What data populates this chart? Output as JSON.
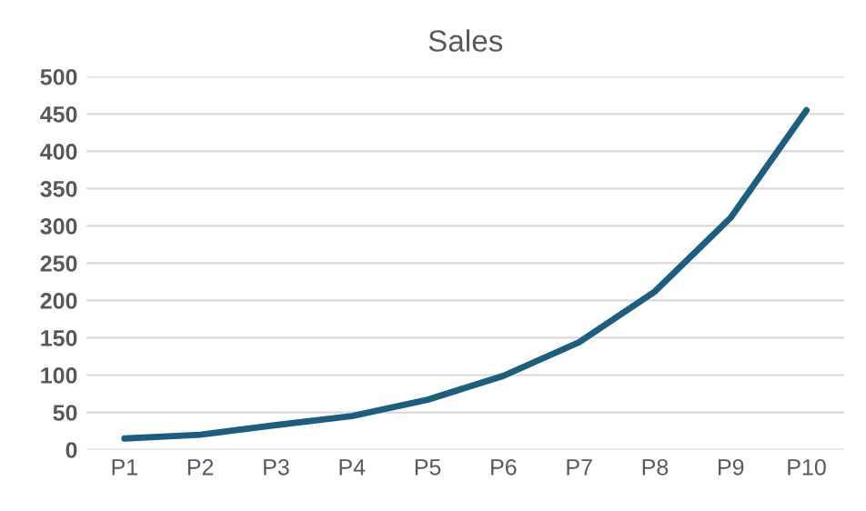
{
  "chart_data": {
    "type": "line",
    "title": "Sales",
    "categories": [
      "P1",
      "P2",
      "P3",
      "P4",
      "P5",
      "P6",
      "P7",
      "P8",
      "P9",
      "P10"
    ],
    "series": [
      {
        "color": "#1b5e80",
        "values": [
          15,
          20,
          33,
          45,
          67,
          99,
          144,
          212,
          311,
          455
        ]
      }
    ],
    "ylim": [
      0,
      500
    ],
    "yticks": [
      0,
      50,
      100,
      150,
      200,
      250,
      300,
      350,
      400,
      450,
      500
    ],
    "grid": "y",
    "legend": false,
    "marker": "none",
    "line_style": "solid"
  }
}
